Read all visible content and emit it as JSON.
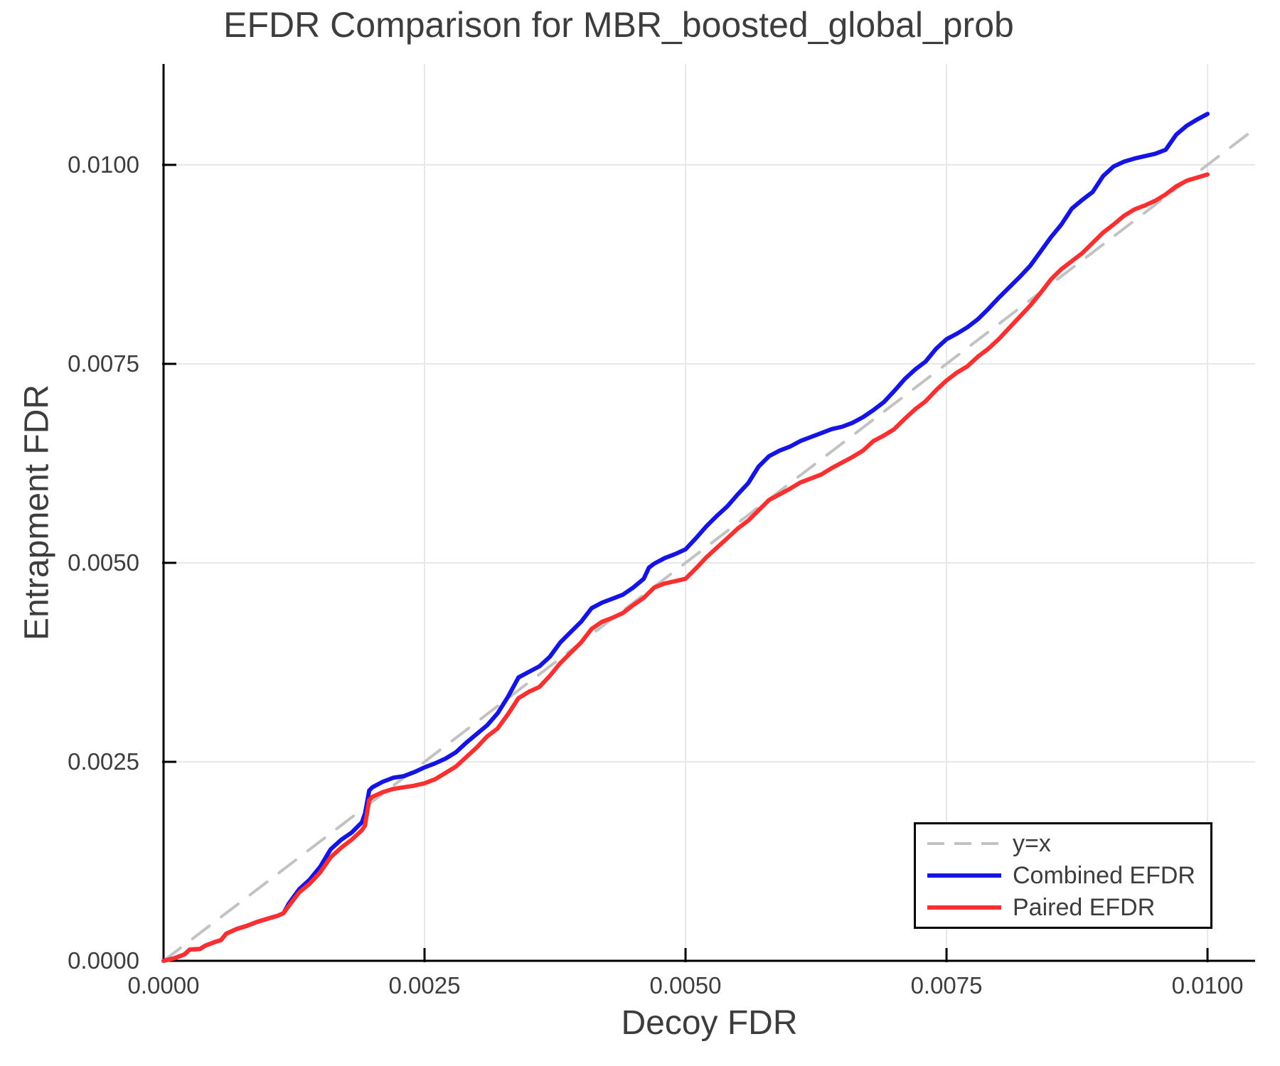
{
  "figure": {
    "background_color": "#ffffff",
    "text_color": "#3d3d3d"
  },
  "chart_data": {
    "type": "line",
    "title": "EFDR Comparison for MBR_boosted_global_prob",
    "xlabel": "Decoy FDR",
    "ylabel": "Entrapment FDR",
    "xlim": [
      0,
      0.010456
    ],
    "ylim": [
      0,
      0.011268
    ],
    "grid": true,
    "grid_color": "#e8e8e8",
    "axis_color": "#000000",
    "tick_label_color": "#3d3d3d",
    "legend_position": "lower right",
    "x_ticks": {
      "values": [
        0.0,
        0.0025,
        0.005,
        0.0075,
        0.01
      ],
      "labels": [
        "0.0000",
        "0.0025",
        "0.0050",
        "0.0075",
        "0.0100"
      ]
    },
    "y_ticks": {
      "values": [
        0.0,
        0.0025,
        0.005,
        0.0075,
        0.01
      ],
      "labels": [
        "0.0000",
        "0.0025",
        "0.0050",
        "0.0075",
        "0.0100"
      ]
    },
    "series": [
      {
        "name": "y=x",
        "role": "reference",
        "color": "#c2c2c2",
        "dash": [
          30,
          21
        ],
        "width": 4,
        "points": [
          [
            0,
            0
          ],
          [
            0.010456,
            0.010456
          ]
        ]
      },
      {
        "name": "Combined EFDR",
        "role": "data",
        "color": "#1515e3",
        "dash": null,
        "width": 6,
        "points": [
          [
            0.0,
            0.0
          ],
          [
            0.0001,
            3e-05
          ],
          [
            0.0002,
            8e-05
          ],
          [
            0.00025,
            0.00014
          ],
          [
            0.00035,
            0.00015
          ],
          [
            0.0004,
            0.00019
          ],
          [
            0.0005,
            0.00024
          ],
          [
            0.00055,
            0.00026
          ],
          [
            0.0006,
            0.00034
          ],
          [
            0.0007,
            0.0004
          ],
          [
            0.0008,
            0.00044
          ],
          [
            0.0009,
            0.00049
          ],
          [
            0.001,
            0.00053
          ],
          [
            0.0011,
            0.00057
          ],
          [
            0.00115,
            0.0006
          ],
          [
            0.0012,
            0.00072
          ],
          [
            0.0013,
            0.0009
          ],
          [
            0.0014,
            0.00102
          ],
          [
            0.0015,
            0.00118
          ],
          [
            0.0016,
            0.0014
          ],
          [
            0.0017,
            0.00152
          ],
          [
            0.0018,
            0.00161
          ],
          [
            0.0019,
            0.00174
          ],
          [
            0.00193,
            0.00185
          ],
          [
            0.00197,
            0.00214
          ],
          [
            0.002,
            0.00218
          ],
          [
            0.0021,
            0.00225
          ],
          [
            0.0022,
            0.0023
          ],
          [
            0.0023,
            0.00232
          ],
          [
            0.0024,
            0.00237
          ],
          [
            0.0025,
            0.00243
          ],
          [
            0.0026,
            0.00248
          ],
          [
            0.0027,
            0.00254
          ],
          [
            0.0028,
            0.00262
          ],
          [
            0.0029,
            0.00274
          ],
          [
            0.003,
            0.00285
          ],
          [
            0.0031,
            0.00296
          ],
          [
            0.0032,
            0.00311
          ],
          [
            0.0033,
            0.00332
          ],
          [
            0.0034,
            0.00356
          ],
          [
            0.0035,
            0.00363
          ],
          [
            0.0036,
            0.0037
          ],
          [
            0.0037,
            0.00382
          ],
          [
            0.0038,
            0.004
          ],
          [
            0.0039,
            0.00413
          ],
          [
            0.004,
            0.00426
          ],
          [
            0.0041,
            0.00443
          ],
          [
            0.0042,
            0.0045
          ],
          [
            0.0043,
            0.00455
          ],
          [
            0.0044,
            0.0046
          ],
          [
            0.0045,
            0.00469
          ],
          [
            0.0046,
            0.0048
          ],
          [
            0.00465,
            0.00494
          ],
          [
            0.0047,
            0.00499
          ],
          [
            0.0048,
            0.00506
          ],
          [
            0.0049,
            0.00511
          ],
          [
            0.005,
            0.00517
          ],
          [
            0.0051,
            0.00531
          ],
          [
            0.0052,
            0.00546
          ],
          [
            0.0053,
            0.00559
          ],
          [
            0.0054,
            0.00571
          ],
          [
            0.0055,
            0.00586
          ],
          [
            0.0056,
            0.006
          ],
          [
            0.0057,
            0.00621
          ],
          [
            0.0058,
            0.00634
          ],
          [
            0.0059,
            0.00641
          ],
          [
            0.006,
            0.00646
          ],
          [
            0.0061,
            0.00653
          ],
          [
            0.0062,
            0.00658
          ],
          [
            0.0063,
            0.00663
          ],
          [
            0.0064,
            0.00668
          ],
          [
            0.0065,
            0.00671
          ],
          [
            0.0066,
            0.00676
          ],
          [
            0.0067,
            0.00683
          ],
          [
            0.0068,
            0.00692
          ],
          [
            0.0069,
            0.00702
          ],
          [
            0.007,
            0.00716
          ],
          [
            0.0071,
            0.00731
          ],
          [
            0.0072,
            0.00743
          ],
          [
            0.0073,
            0.00753
          ],
          [
            0.0074,
            0.00769
          ],
          [
            0.0075,
            0.00781
          ],
          [
            0.0076,
            0.00788
          ],
          [
            0.0077,
            0.00796
          ],
          [
            0.0078,
            0.00806
          ],
          [
            0.0079,
            0.00819
          ],
          [
            0.008,
            0.00833
          ],
          [
            0.0081,
            0.00846
          ],
          [
            0.0082,
            0.00859
          ],
          [
            0.0083,
            0.00873
          ],
          [
            0.0084,
            0.00891
          ],
          [
            0.0085,
            0.00909
          ],
          [
            0.0086,
            0.00925
          ],
          [
            0.0087,
            0.00945
          ],
          [
            0.0088,
            0.00956
          ],
          [
            0.0089,
            0.00966
          ],
          [
            0.009,
            0.00986
          ],
          [
            0.0091,
            0.00998
          ],
          [
            0.0092,
            0.01004
          ],
          [
            0.0093,
            0.01008
          ],
          [
            0.0094,
            0.01011
          ],
          [
            0.0095,
            0.01014
          ],
          [
            0.0096,
            0.01019
          ],
          [
            0.0097,
            0.01038
          ],
          [
            0.0098,
            0.01049
          ],
          [
            0.0099,
            0.01057
          ],
          [
            0.01,
            0.01064
          ]
        ]
      },
      {
        "name": "Paired EFDR",
        "role": "data",
        "color": "#fa3030",
        "dash": null,
        "width": 6,
        "points": [
          [
            0.0,
            0.0
          ],
          [
            0.0001,
            3e-05
          ],
          [
            0.0002,
            8e-05
          ],
          [
            0.00025,
            0.00014
          ],
          [
            0.00035,
            0.00015
          ],
          [
            0.0004,
            0.00019
          ],
          [
            0.0005,
            0.00024
          ],
          [
            0.00055,
            0.00026
          ],
          [
            0.0006,
            0.00034
          ],
          [
            0.0007,
            0.0004
          ],
          [
            0.0008,
            0.00044
          ],
          [
            0.0009,
            0.00049
          ],
          [
            0.001,
            0.00053
          ],
          [
            0.0011,
            0.00057
          ],
          [
            0.00115,
            0.0006
          ],
          [
            0.0012,
            0.00069
          ],
          [
            0.0013,
            0.00086
          ],
          [
            0.0014,
            0.00097
          ],
          [
            0.0015,
            0.00111
          ],
          [
            0.0016,
            0.0013
          ],
          [
            0.0017,
            0.00142
          ],
          [
            0.0018,
            0.00152
          ],
          [
            0.0019,
            0.00164
          ],
          [
            0.00193,
            0.0017
          ],
          [
            0.00197,
            0.00202
          ],
          [
            0.002,
            0.00206
          ],
          [
            0.0021,
            0.00212
          ],
          [
            0.0022,
            0.00216
          ],
          [
            0.0023,
            0.00218
          ],
          [
            0.0024,
            0.0022
          ],
          [
            0.0025,
            0.00223
          ],
          [
            0.0026,
            0.00228
          ],
          [
            0.0027,
            0.00236
          ],
          [
            0.0028,
            0.00244
          ],
          [
            0.0029,
            0.00256
          ],
          [
            0.003,
            0.00268
          ],
          [
            0.0031,
            0.00282
          ],
          [
            0.0032,
            0.00292
          ],
          [
            0.0033,
            0.0031
          ],
          [
            0.0034,
            0.0033
          ],
          [
            0.0035,
            0.00338
          ],
          [
            0.0036,
            0.00344
          ],
          [
            0.0037,
            0.00358
          ],
          [
            0.0038,
            0.00374
          ],
          [
            0.0039,
            0.00387
          ],
          [
            0.004,
            0.004
          ],
          [
            0.0041,
            0.00417
          ],
          [
            0.0042,
            0.00426
          ],
          [
            0.0043,
            0.00431
          ],
          [
            0.0044,
            0.00437
          ],
          [
            0.0045,
            0.00447
          ],
          [
            0.0046,
            0.00456
          ],
          [
            0.0047,
            0.00469
          ],
          [
            0.0048,
            0.00474
          ],
          [
            0.0049,
            0.00477
          ],
          [
            0.005,
            0.0048
          ],
          [
            0.0051,
            0.00493
          ],
          [
            0.0052,
            0.00507
          ],
          [
            0.0053,
            0.00519
          ],
          [
            0.0054,
            0.00531
          ],
          [
            0.0055,
            0.00543
          ],
          [
            0.0056,
            0.00553
          ],
          [
            0.0057,
            0.00566
          ],
          [
            0.0058,
            0.00579
          ],
          [
            0.0059,
            0.00586
          ],
          [
            0.006,
            0.00593
          ],
          [
            0.0061,
            0.00601
          ],
          [
            0.0062,
            0.00606
          ],
          [
            0.0063,
            0.00611
          ],
          [
            0.0064,
            0.00619
          ],
          [
            0.0065,
            0.00626
          ],
          [
            0.0066,
            0.00633
          ],
          [
            0.0067,
            0.00641
          ],
          [
            0.0068,
            0.00653
          ],
          [
            0.0069,
            0.0066
          ],
          [
            0.007,
            0.00668
          ],
          [
            0.0071,
            0.00681
          ],
          [
            0.0072,
            0.00693
          ],
          [
            0.0073,
            0.00703
          ],
          [
            0.0074,
            0.00717
          ],
          [
            0.0075,
            0.00729
          ],
          [
            0.0076,
            0.00739
          ],
          [
            0.0077,
            0.00747
          ],
          [
            0.0078,
            0.00759
          ],
          [
            0.0079,
            0.00769
          ],
          [
            0.008,
            0.00781
          ],
          [
            0.0081,
            0.00795
          ],
          [
            0.0082,
            0.00809
          ],
          [
            0.0083,
            0.00823
          ],
          [
            0.0084,
            0.00839
          ],
          [
            0.0085,
            0.00856
          ],
          [
            0.0086,
            0.00869
          ],
          [
            0.0087,
            0.00879
          ],
          [
            0.0088,
            0.00889
          ],
          [
            0.0089,
            0.00902
          ],
          [
            0.009,
            0.00915
          ],
          [
            0.0091,
            0.00925
          ],
          [
            0.0092,
            0.00936
          ],
          [
            0.0093,
            0.00944
          ],
          [
            0.0094,
            0.00949
          ],
          [
            0.0095,
            0.00955
          ],
          [
            0.0096,
            0.00963
          ],
          [
            0.0097,
            0.00973
          ],
          [
            0.0098,
            0.0098
          ],
          [
            0.0099,
            0.00984
          ],
          [
            0.01,
            0.00988
          ]
        ]
      }
    ]
  }
}
